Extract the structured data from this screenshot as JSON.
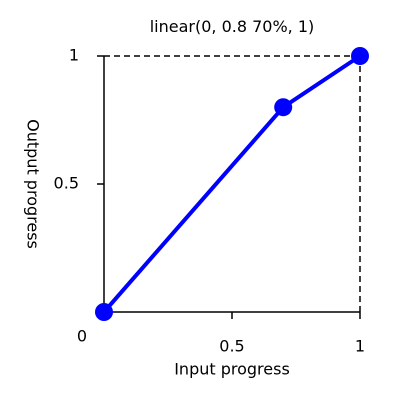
{
  "chart_data": {
    "type": "line",
    "title": "linear(0, 0.8 70%, 1)",
    "xlabel": "Input progress",
    "ylabel": "Output progress",
    "xlim": [
      0,
      1
    ],
    "ylim": [
      0,
      1
    ],
    "origin_label": "0",
    "x_ticks": [
      {
        "value": 0.5,
        "label": "0.5"
      },
      {
        "value": 1,
        "label": "1"
      }
    ],
    "y_ticks": [
      {
        "value": 0.5,
        "label": "0.5"
      },
      {
        "value": 1,
        "label": "1"
      }
    ],
    "grid": false,
    "series": [
      {
        "x": [
          0,
          0.7,
          1
        ],
        "y": [
          0,
          0.8,
          1
        ],
        "color": "#0000ff",
        "markers": true
      }
    ],
    "reference_lines": {
      "style": "dashed",
      "color": "#000000",
      "top_at_y": 1,
      "right_at_x": 1
    }
  }
}
